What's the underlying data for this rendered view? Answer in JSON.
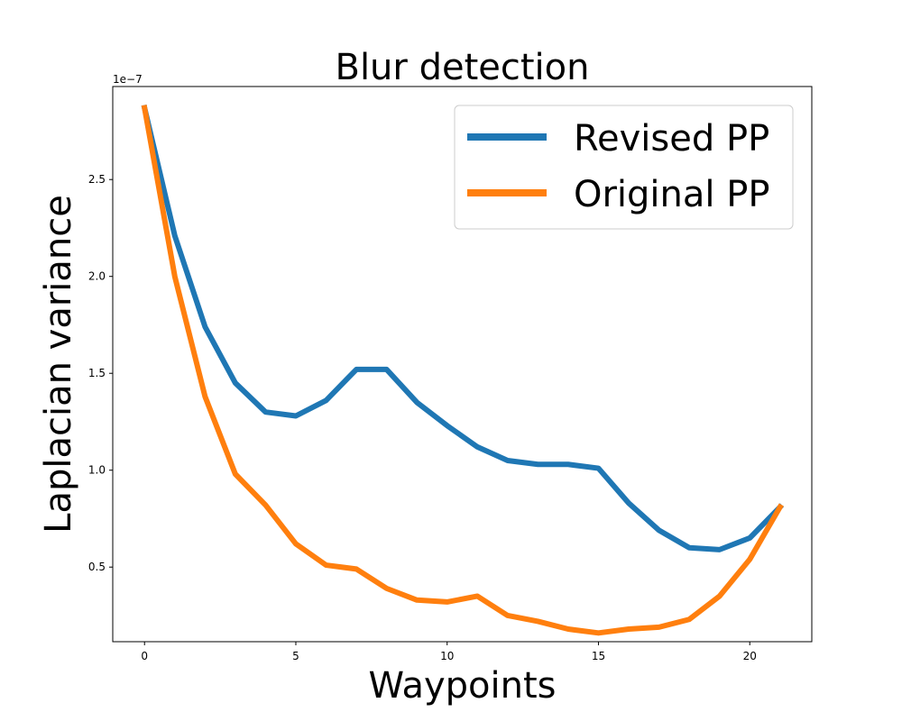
{
  "chart_data": {
    "type": "line",
    "title": "Blur detection",
    "xlabel": "Waypoints",
    "ylabel": "Laplacian variance",
    "y_offset_label": "1e−7",
    "xlim": [
      -1.05,
      22.05
    ],
    "ylim": [
      0.115,
      2.98
    ],
    "y_multiplier": 1e-07,
    "x_ticks": [
      0,
      5,
      10,
      15,
      20
    ],
    "x_tick_labels": [
      "0",
      "5",
      "10",
      "15",
      "20"
    ],
    "y_ticks": [
      0.5,
      1.0,
      1.5,
      2.0,
      2.5
    ],
    "y_tick_labels": [
      "0.5",
      "1.0",
      "1.5",
      "2.0",
      "2.5"
    ],
    "grid": false,
    "legend_position": "top-right",
    "x": [
      0,
      1,
      2,
      3,
      4,
      5,
      6,
      7,
      8,
      9,
      10,
      11,
      12,
      13,
      14,
      15,
      16,
      17,
      18,
      19,
      20,
      21
    ],
    "series": [
      {
        "name": "Revised PP",
        "color": "#1f77b4",
        "values": [
          2.87,
          2.21,
          1.74,
          1.45,
          1.3,
          1.28,
          1.36,
          1.52,
          1.52,
          1.35,
          1.23,
          1.12,
          1.05,
          1.03,
          1.03,
          1.01,
          0.83,
          0.69,
          0.6,
          0.59,
          0.65,
          0.81
        ]
      },
      {
        "name": "Original PP",
        "color": "#ff7f0e",
        "values": [
          2.87,
          2.0,
          1.38,
          0.98,
          0.82,
          0.62,
          0.51,
          0.49,
          0.39,
          0.33,
          0.32,
          0.35,
          0.25,
          0.22,
          0.18,
          0.16,
          0.18,
          0.19,
          0.23,
          0.35,
          0.54,
          0.81
        ]
      }
    ]
  }
}
